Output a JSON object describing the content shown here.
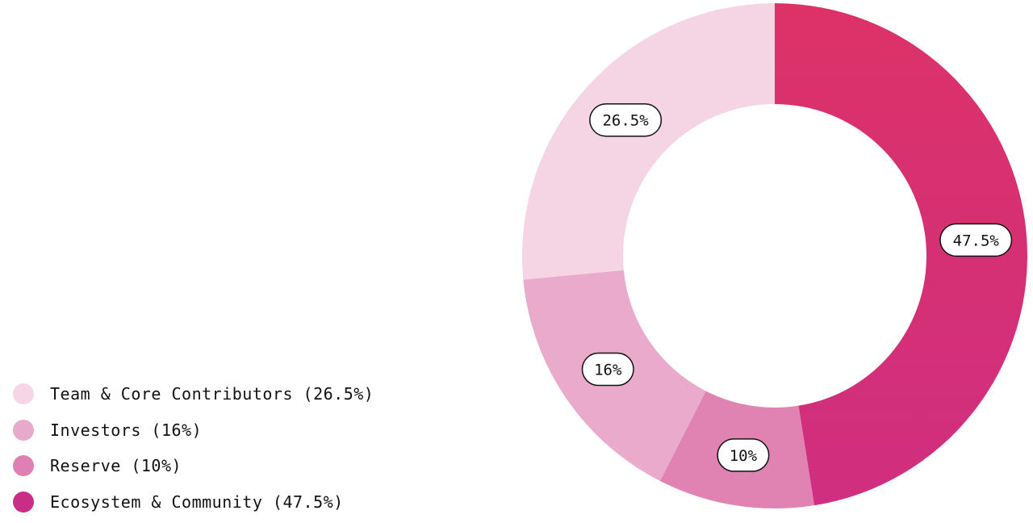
{
  "chart_data": {
    "type": "pie",
    "variant": "donut",
    "start": "top",
    "direction": "clockwise",
    "slices": [
      {
        "name": "Ecosystem & Community",
        "value": 47.5,
        "label": "47.5%",
        "color": "#d62f74",
        "color_end": "#dc3268",
        "legend": "Ecosystem & Community (47.5%)"
      },
      {
        "name": "Reserve",
        "value": 10,
        "label": "10%",
        "color": "#e083b2",
        "legend": "Reserve (10%)"
      },
      {
        "name": "Investors",
        "value": 16,
        "label": "16%",
        "color": "#e9aacc",
        "legend": "Investors (16%)"
      },
      {
        "name": "Team & Core Contributors",
        "value": 26.5,
        "label": "26.5%",
        "color": "#f5d5e4",
        "legend": "Team & Core Contributors (26.5%)"
      }
    ],
    "legend_order": [
      3,
      2,
      1,
      0
    ],
    "legend_dot_colors": [
      "#f5d5e6",
      "#e8aacc",
      "#e07fb3",
      "#c92e87"
    ],
    "legend_position": "bottom-left"
  }
}
